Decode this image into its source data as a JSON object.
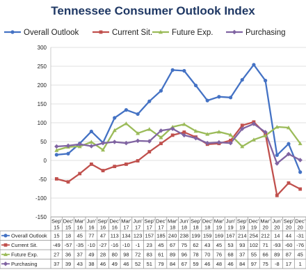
{
  "title": "Tennessee Consumer Outlook Index",
  "chart_data": {
    "type": "line",
    "title": "Tennessee Consumer Outlook Index",
    "categories": [
      "Sep' 15",
      "Dec' 15",
      "Mar' 16",
      "Jun' 16",
      "Sep' 16",
      "Dec' 16",
      "Mar' 17",
      "Jun' 17",
      "Sep' 17",
      "Dec' 17",
      "Mar' 18",
      "Jun' 18",
      "Sep' 18",
      "Dec' 18",
      "Mar' 19",
      "Jun' 19",
      "Sep' 19",
      "Dec' 19",
      "Mar' 20",
      "Jun' 20",
      "Sep' 20",
      "Dec' 20"
    ],
    "ylim": [
      -150,
      300
    ],
    "yticks": [
      300,
      250,
      200,
      150,
      100,
      50,
      0,
      -50,
      -100,
      -150
    ],
    "grid": true,
    "legend_position": "top",
    "series": [
      {
        "name": "Overall Outlook",
        "color": "#4472c4",
        "values": [
          15,
          18,
          45,
          77,
          47,
          113,
          134,
          123,
          157,
          185,
          240,
          238,
          199,
          159,
          169,
          167,
          214,
          254,
          212,
          14,
          44,
          -31
        ]
      },
      {
        "name": "Current Sit.",
        "color": "#c0504d",
        "values": [
          -49,
          -57,
          -35,
          -10,
          -27,
          -16,
          -10,
          -1,
          23,
          45,
          67,
          75,
          62,
          43,
          45,
          53,
          93,
          102,
          71,
          -93,
          -60,
          -76
        ]
      },
      {
        "name": "Future Exp.",
        "color": "#9bbb59",
        "values": [
          27,
          36,
          37,
          49,
          28,
          80,
          98,
          72,
          83,
          61,
          89,
          96,
          78,
          70,
          76,
          68,
          37,
          55,
          66,
          89,
          87,
          45
        ]
      },
      {
        "name": "Purchasing",
        "color": "#8064a2",
        "values": [
          37,
          39,
          43,
          38,
          46,
          49,
          46,
          52,
          51,
          79,
          84,
          67,
          59,
          46,
          48,
          46,
          84,
          97,
          75,
          -8,
          17,
          1
        ]
      }
    ],
    "table": {
      "header_top": [
        "Sep'",
        "Dec'",
        "Mar'",
        "Jun'",
        "Sep'",
        "Dec'",
        "Mar'",
        "Jun'",
        "Sep'",
        "Dec'",
        "Mar'",
        "Jun'",
        "Sep'",
        "Dec'",
        "Mar'",
        "Jun'",
        "Sep'",
        "Dec'",
        "Mar'",
        "Jun'",
        "Sep'",
        "Dec'"
      ],
      "header_bottom": [
        "15",
        "15",
        "16",
        "16",
        "16",
        "16",
        "17",
        "17",
        "17",
        "17",
        "18",
        "18",
        "18",
        "18",
        "19",
        "19",
        "19",
        "19",
        "20",
        "20",
        "20",
        "20"
      ],
      "rows": [
        {
          "label": "Overall Outlook",
          "cells": [
            "15",
            "18",
            "45",
            "77",
            "47",
            "113",
            "134",
            "123",
            "157",
            "185",
            "240",
            "238",
            "199",
            "159",
            "169",
            "167",
            "214",
            "254",
            "212",
            "14",
            "44",
            "-31"
          ]
        },
        {
          "label": "Current Sit.",
          "cells": [
            "-49",
            "-57",
            "-35",
            "-10",
            "-27",
            "-16",
            "-10",
            "-1",
            "23",
            "45",
            "67",
            "75",
            "62",
            "43",
            "45",
            "53",
            "93",
            "102",
            "71",
            "-93",
            "-60",
            "-76"
          ]
        },
        {
          "label": "Future Exp.",
          "cells": [
            "27",
            "36",
            "37",
            "49",
            "28",
            "80",
            "98",
            "72",
            "83",
            "61",
            "89",
            "96",
            "78",
            "70",
            "76",
            "68",
            "37",
            "55",
            "66",
            "89",
            "87",
            "45"
          ]
        },
        {
          "label": "Purchasing",
          "cells": [
            "37",
            "39",
            "43",
            "38",
            "46",
            "49",
            "46",
            "52",
            "51",
            "79",
            "84",
            "67",
            "59",
            "46",
            "48",
            "46",
            "84",
            "97",
            "75",
            "-8",
            "17",
            "1"
          ]
        }
      ]
    }
  }
}
